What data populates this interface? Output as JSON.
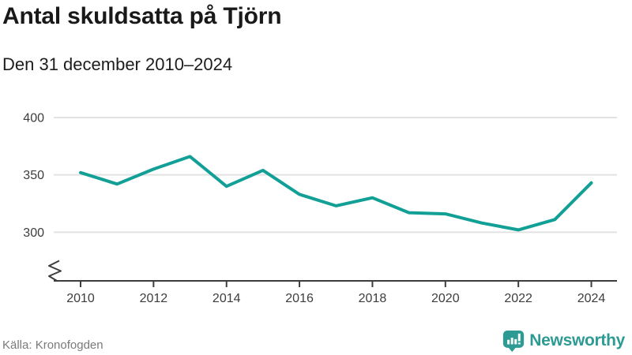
{
  "header": {
    "title": "Antal skuldsatta på Tjörn",
    "subtitle": "Den 31 december 2010–2024"
  },
  "footer": {
    "source": "Källa: Kronofogden",
    "brand": "Newsworthy"
  },
  "colors": {
    "line": "#12a096",
    "grid": "#e2e2e2",
    "axis": "#3d3d3d",
    "tick_text": "#3d3d3d",
    "title_text": "#191919",
    "source_text": "#7a7a7a",
    "brand_teal": "#2d9a94"
  },
  "chart_data": {
    "type": "line",
    "title": "Antal skuldsatta på Tjörn",
    "subtitle": "Den 31 december 2010–2024",
    "x": [
      2010,
      2011,
      2012,
      2013,
      2014,
      2015,
      2016,
      2017,
      2018,
      2019,
      2020,
      2021,
      2022,
      2023,
      2024
    ],
    "series": [
      {
        "name": "Antal skuldsatta",
        "values": [
          352,
          342,
          355,
          366,
          340,
          354,
          333,
          323,
          330,
          317,
          316,
          308,
          302,
          311,
          343
        ]
      }
    ],
    "xlabel": "",
    "ylabel": "",
    "yticks": [
      300,
      350,
      400
    ],
    "xticks": [
      2010,
      2012,
      2014,
      2016,
      2018,
      2020,
      2022,
      2024
    ],
    "ylim": [
      300,
      400
    ],
    "grid": "horizontal",
    "axis_break": true,
    "legend": "none",
    "source": "Källa: Kronofogden"
  }
}
